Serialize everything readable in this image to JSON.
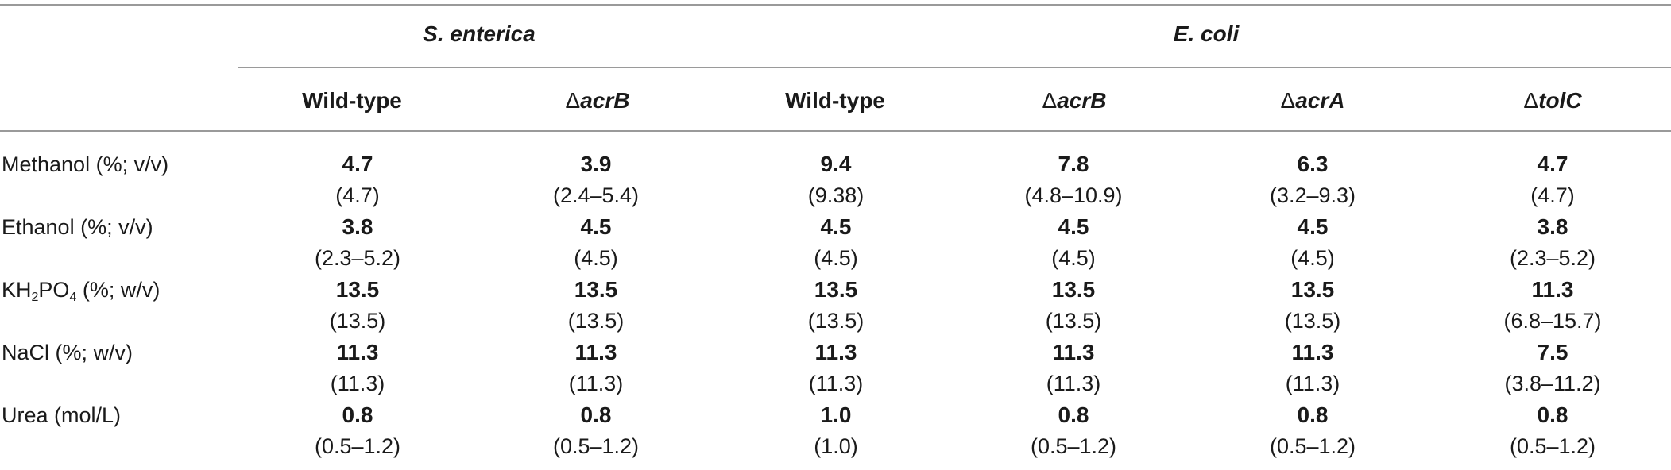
{
  "groups": {
    "s_enterica": "S. enterica",
    "e_coli": "E. coli"
  },
  "columns": [
    {
      "delta": "",
      "gene": "Wild-type"
    },
    {
      "delta": "Δ",
      "gene": "acrB"
    },
    {
      "delta": "",
      "gene": "Wild-type"
    },
    {
      "delta": "Δ",
      "gene": "acrB"
    },
    {
      "delta": "Δ",
      "gene": "acrA"
    },
    {
      "delta": "Δ",
      "gene": "tolC"
    }
  ],
  "rows": [
    {
      "label": "Methanol (%; v/v)",
      "main": [
        "4.7",
        "3.9",
        "9.4",
        "7.8",
        "6.3",
        "4.7"
      ],
      "range": [
        "(4.7)",
        "(2.4–5.4)",
        "(9.38)",
        "(4.8–10.9)",
        "(3.2–9.3)",
        "(4.7)"
      ]
    },
    {
      "label": "Ethanol (%; v/v)",
      "main": [
        "3.8",
        "4.5",
        "4.5",
        "4.5",
        "4.5",
        "3.8"
      ],
      "range": [
        "(2.3–5.2)",
        "(4.5)",
        "(4.5)",
        "(4.5)",
        "(4.5)",
        "(2.3–5.2)"
      ]
    },
    {
      "label_parts": [
        "KH",
        "2",
        "PO",
        "4",
        " (%; w/v)"
      ],
      "main": [
        "13.5",
        "13.5",
        "13.5",
        "13.5",
        "13.5",
        "11.3"
      ],
      "range": [
        "(13.5)",
        "(13.5)",
        "(13.5)",
        "(13.5)",
        "(13.5)",
        "(6.8–15.7)"
      ]
    },
    {
      "label": "NaCl (%; w/v)",
      "main": [
        "11.3",
        "11.3",
        "11.3",
        "11.3",
        "11.3",
        "7.5"
      ],
      "range": [
        "(11.3)",
        "(11.3)",
        "(11.3)",
        "(11.3)",
        "(11.3)",
        "(3.8–11.2)"
      ]
    },
    {
      "label": "Urea (mol/L)",
      "main": [
        "0.8",
        "0.8",
        "1.0",
        "0.8",
        "0.8",
        "0.8"
      ],
      "range": [
        "(0.5–1.2)",
        "(0.5–1.2)",
        "(1.0)",
        "(0.5–1.2)",
        "(0.5–1.2)",
        "(0.5–1.2)"
      ]
    }
  ]
}
